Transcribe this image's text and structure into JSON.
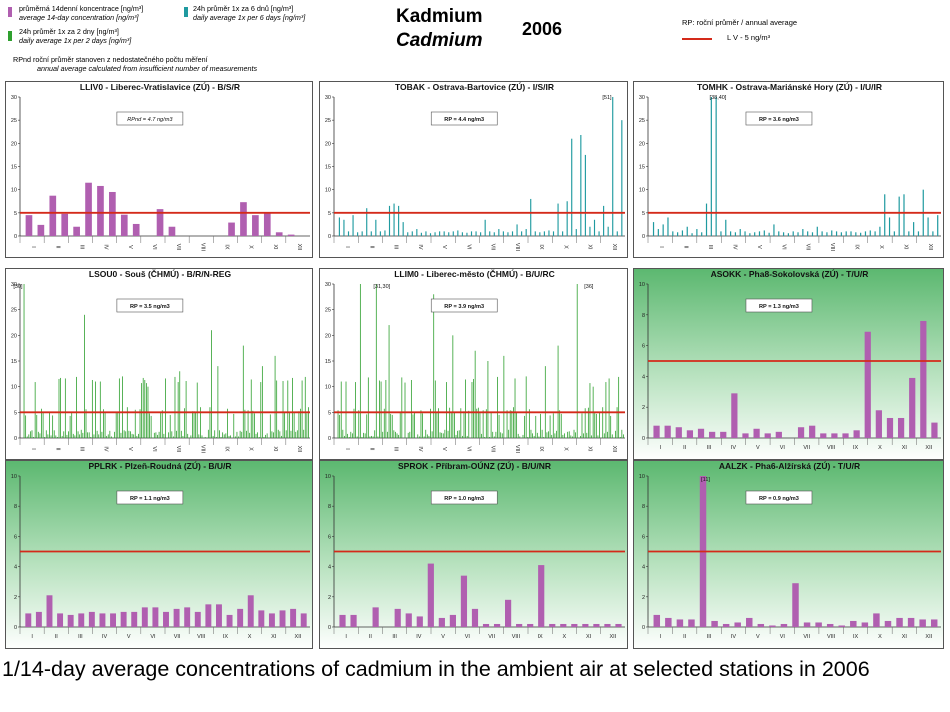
{
  "header": {
    "title_cz": "Kadmium",
    "title_en": "Cadmium",
    "year": "2006",
    "legend_14day_cz": "průměrná 14denní koncentrace [ng/m³]",
    "legend_14day_en": "average 14-day concentration [ng/m³]",
    "legend_2day_cz": "24h průměr 1x za 2 dny [ng/m³]",
    "legend_2day_en": "daily average 1x per 2 days [ng/m³]",
    "legend_6day_cz": "24h průměr 1x za 6 dnů [ng/m³]",
    "legend_6day_en": "daily average 1x per 6 days [ng/m³]",
    "rpnd_note_cz": "RPnd  roční průměr stanoven z nedostatečného počtu měření",
    "rpnd_note_en": "annual average calculated from insufficient number of measurements",
    "rp_legend": "RP: roční průměr / annual average",
    "lv_label": "L V    - 5 ng/m³",
    "colors": {
      "14day": "#b05fb0",
      "2day": "#2fa02f",
      "6day": "#1f9aa0",
      "limit": "#d42a1a"
    }
  },
  "caption": "1/14-day average concentrations of cadmium in the ambient air at selected stations in 2006",
  "chart_data": [
    {
      "type": "bar",
      "title": "LLIV0 - Liberec-Vratislavice (ZÚ) - B/S/R",
      "series_type": "14day",
      "ylim": [
        0,
        30
      ],
      "yticks": [
        0,
        5,
        10,
        15,
        20,
        25,
        30
      ],
      "annotation": "RPnd = 4.7 ng/m3",
      "limit_value": 5,
      "months": [
        "I",
        "II",
        "III",
        "IV",
        "V",
        "VI",
        "VII",
        "VIII",
        "IX",
        "X",
        "XI",
        "XII"
      ],
      "values": [
        4.5,
        2.4,
        8.7,
        4.8,
        2.0,
        11.5,
        10.8,
        9.5,
        4.6,
        2.6,
        null,
        5.8,
        2.0,
        null,
        null,
        null,
        null,
        2.9,
        7.3,
        4.5,
        5.0,
        0.8,
        0.3,
        null
      ],
      "peak_labels": []
    },
    {
      "type": "bar",
      "title": "TOBAK - Ostrava-Bartovice (ZÚ) - I/S/IR",
      "series_type": "6day",
      "ylim": [
        0,
        30
      ],
      "yticks": [
        0,
        5,
        10,
        15,
        20,
        25,
        30
      ],
      "annotation": "RP = 4.4 ng/m3",
      "limit_value": 5,
      "months": [
        "I",
        "II",
        "III",
        "IV",
        "V",
        "VI",
        "VII",
        "VIII",
        "IX",
        "X",
        "XI",
        "XII"
      ],
      "values": [
        4.0,
        3.5,
        1.0,
        4.5,
        0.8,
        1.0,
        6.0,
        1.0,
        3.5,
        1.0,
        1.2,
        6.5,
        7.0,
        6.5,
        3.0,
        0.8,
        1.0,
        1.5,
        0.7,
        1.0,
        0.6,
        0.8,
        1.0,
        1.0,
        0.8,
        1.0,
        1.2,
        0.8,
        0.7,
        1.0,
        1.0,
        0.8,
        3.5,
        1.0,
        0.8,
        1.5,
        1.0,
        0.8,
        1.0,
        2.5,
        1.0,
        1.5,
        8.0,
        1.0,
        0.8,
        1.0,
        1.2,
        1.0,
        7.0,
        1.0,
        7.5,
        21.0,
        1.5,
        21.8,
        17.5,
        2.0,
        3.5,
        1.0,
        6.5,
        2.0,
        30.0,
        1.0,
        25.0
      ],
      "peak_labels": [
        "[51]"
      ]
    },
    {
      "type": "bar",
      "title": "TOMHK - Ostrava-Mariánské Hory (ZÚ) - I/U/IR",
      "series_type": "6day",
      "ylim": [
        0,
        30
      ],
      "yticks": [
        0,
        5,
        10,
        15,
        20,
        25,
        30
      ],
      "annotation": "RP = 3.6 ng/m3",
      "limit_value": 5,
      "months": [
        "I",
        "II",
        "III",
        "IV",
        "V",
        "VI",
        "VII",
        "VIII",
        "IX",
        "X",
        "XI",
        "XII"
      ],
      "values": [
        3.0,
        1.5,
        2.5,
        4.0,
        1.0,
        0.8,
        1.2,
        2.0,
        0.6,
        1.5,
        0.8,
        7.0,
        30.0,
        30.0,
        1.0,
        3.5,
        1.0,
        0.8,
        1.5,
        1.0,
        0.6,
        0.8,
        1.0,
        1.2,
        0.7,
        2.5,
        1.0,
        0.8,
        0.6,
        1.0,
        0.8,
        1.5,
        1.0,
        0.8,
        2.0,
        1.0,
        0.8,
        1.2,
        1.0,
        0.8,
        1.0,
        1.0,
        0.8,
        0.7,
        1.0,
        1.2,
        1.0,
        2.0,
        9.0,
        4.0,
        1.0,
        8.5,
        9.0,
        1.0,
        3.0,
        1.0,
        10.0,
        4.0,
        1.0,
        4.5
      ],
      "peak_labels": [
        "[38,40]"
      ]
    },
    {
      "type": "bar",
      "title": "LSOU0 - Souš (ČHMÚ) - B/R/N-REG",
      "series_type": "2day",
      "ylim": [
        0,
        30
      ],
      "yticks": [
        0,
        5,
        10,
        15,
        20,
        25,
        30
      ],
      "annotation": "RP = 3.5 ng/m3",
      "limit_value": 5,
      "months": [
        "I",
        "II",
        "III",
        "IV",
        "V",
        "VI",
        "VII",
        "VIII",
        "IX",
        "X",
        "XI",
        "XII"
      ],
      "values": [],
      "peak_labels": [
        "[30]"
      ]
    },
    {
      "type": "bar",
      "title": "LLIM0 - Liberec-město (ČHMÚ) - B/U/RC",
      "series_type": "2day",
      "ylim": [
        0,
        30
      ],
      "yticks": [
        0,
        5,
        10,
        15,
        20,
        25,
        30
      ],
      "annotation": "RP = 3.9 ng/m3",
      "limit_value": 5,
      "months": [
        "I",
        "II",
        "III",
        "IV",
        "V",
        "VI",
        "VII",
        "VIII",
        "IX",
        "X",
        "XI",
        "XII"
      ],
      "values": [],
      "peak_labels": [
        "[31,30]",
        "[36]"
      ]
    },
    {
      "type": "bar",
      "title": "ASOKK - Pha8-Sokolovská (ZÚ) - T/U/R",
      "series_type": "14day",
      "ylim": [
        0,
        10
      ],
      "yticks": [
        0,
        2,
        4,
        6,
        8,
        10
      ],
      "annotation": "RP = 1.3 ng/m3",
      "limit_value": 5,
      "months": [
        "I",
        "II",
        "III",
        "IV",
        "V",
        "VI",
        "VII",
        "VIII",
        "IX",
        "X",
        "XI",
        "XII"
      ],
      "values": [
        0.8,
        0.8,
        0.7,
        0.5,
        0.6,
        0.4,
        0.4,
        2.9,
        0.3,
        0.6,
        0.3,
        0.4,
        null,
        0.7,
        0.8,
        0.3,
        0.3,
        0.3,
        0.5,
        6.9,
        1.8,
        1.3,
        1.3,
        3.9,
        7.6,
        1.0
      ],
      "peak_labels": []
    },
    {
      "type": "bar",
      "title": "PPLRK - Plzeň-Roudná (ZÚ) - B/U/R",
      "series_type": "14day",
      "ylim": [
        0,
        10
      ],
      "yticks": [
        0,
        2,
        4,
        6,
        8,
        10
      ],
      "annotation": "RP = 1.1 ng/m3",
      "limit_value": 5,
      "months": [
        "I",
        "II",
        "III",
        "IV",
        "V",
        "VI",
        "VII",
        "VIII",
        "IX",
        "X",
        "XI",
        "XII"
      ],
      "values": [
        0.9,
        1.0,
        2.1,
        0.9,
        0.8,
        0.9,
        1.0,
        0.9,
        0.9,
        1.0,
        1.0,
        1.3,
        1.3,
        1.0,
        1.2,
        1.3,
        1.0,
        1.5,
        1.5,
        0.8,
        1.2,
        2.1,
        1.1,
        0.9,
        1.1,
        1.2,
        0.9
      ],
      "peak_labels": []
    },
    {
      "type": "bar",
      "title": "SPROK - Příbram-OÚNZ (ZÚ) - B/U/NR",
      "series_type": "14day",
      "ylim": [
        0,
        10
      ],
      "yticks": [
        0,
        2,
        4,
        6,
        8,
        10
      ],
      "annotation": "RP = 1.0 ng/m3",
      "limit_value": 5,
      "months": [
        "I",
        "II",
        "III",
        "IV",
        "V",
        "VI",
        "VII",
        "VIII",
        "IX",
        "X",
        "XI",
        "XII"
      ],
      "values": [
        0.8,
        0.8,
        null,
        1.3,
        null,
        1.2,
        0.9,
        0.7,
        4.2,
        0.6,
        0.8,
        3.4,
        1.2,
        0.2,
        0.2,
        1.8,
        0.2,
        0.2,
        4.1,
        0.2,
        0.2,
        0.2,
        0.2,
        0.2,
        0.2,
        0.2
      ],
      "peak_labels": []
    },
    {
      "type": "bar",
      "title": "AALZK - Pha6-Alžírská (ZÚ) - T/U/R",
      "series_type": "14day",
      "ylim": [
        0,
        10
      ],
      "yticks": [
        0,
        2,
        4,
        6,
        8,
        10
      ],
      "annotation": "RP = 0.9 ng/m3",
      "limit_value": 5,
      "months": [
        "I",
        "II",
        "III",
        "IV",
        "V",
        "VI",
        "VII",
        "VIII",
        "IX",
        "X",
        "XI",
        "XII"
      ],
      "values": [
        0.8,
        0.6,
        0.5,
        0.5,
        10.0,
        0.4,
        0.2,
        0.3,
        0.6,
        0.2,
        0.1,
        0.2,
        2.9,
        0.3,
        0.3,
        0.2,
        0.1,
        0.4,
        0.3,
        0.9,
        0.4,
        0.6,
        0.6,
        0.5,
        0.5
      ],
      "peak_labels": [
        "[11]"
      ]
    }
  ]
}
